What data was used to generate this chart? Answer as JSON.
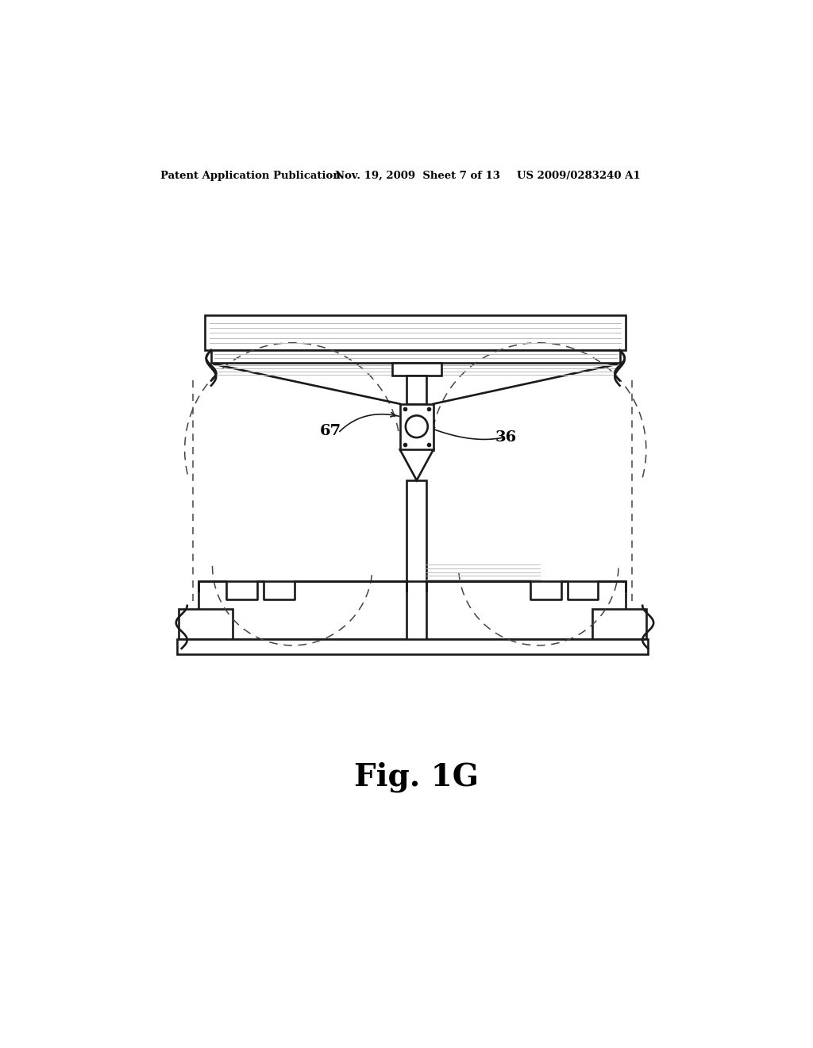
{
  "bg_color": "#ffffff",
  "line_color": "#1a1a1a",
  "gray_color": "#bbbbbb",
  "dash_color": "#444444",
  "header_left": "Patent Application Publication",
  "header_mid": "Nov. 19, 2009  Sheet 7 of 13",
  "header_right": "US 2009/0283240 A1",
  "figure_label": "Fig. 1G",
  "label_67": "67",
  "label_36": "36",
  "lw": 1.9,
  "lw_thin": 0.7,
  "lw_dash": 1.1
}
